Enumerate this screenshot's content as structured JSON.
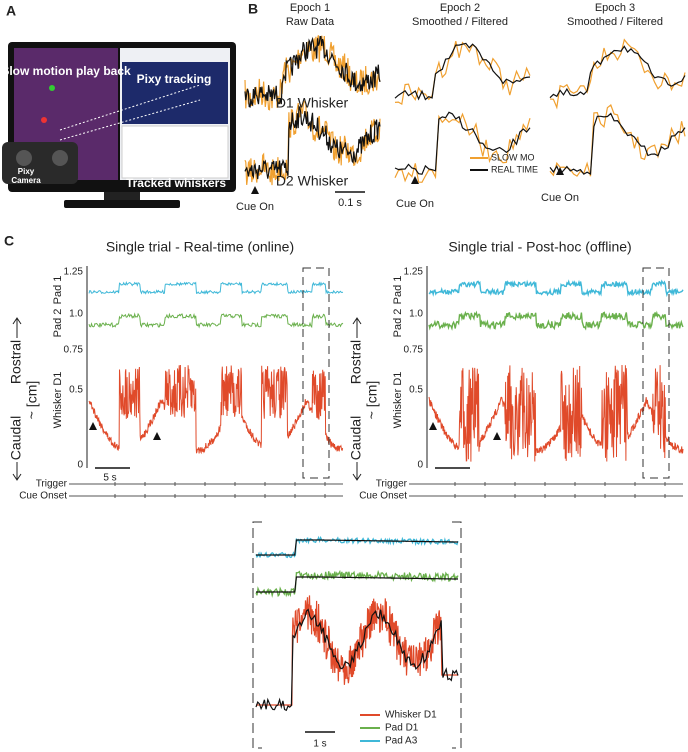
{
  "panels": {
    "A": {
      "label": "A",
      "screen_left": "Slow motion play back",
      "screen_right": "Pixy tracking",
      "camera": [
        "Pixy",
        "Camera"
      ],
      "footer": "Tracked whiskers"
    },
    "B": {
      "label": "B",
      "epochs": [
        {
          "title": "Epoch 1",
          "subtitle": "Raw Data"
        },
        {
          "title": "Epoch 2",
          "subtitle": "Smoothed / Filtered"
        },
        {
          "title": "Epoch 3",
          "subtitle": "Smoothed / Filtered"
        }
      ],
      "row_labels": [
        "D1 Whisker",
        "D2 Whisker"
      ],
      "cue": "Cue On",
      "scale": "0.1 s",
      "legend": [
        "SLOW MO",
        "REAL TIME"
      ]
    },
    "C": {
      "label": "C",
      "titles": [
        "Single trial - Real-time (online)",
        "Single trial - Post-hoc (offline)"
      ],
      "direction": [
        "Caudal",
        "Rostral"
      ],
      "unit": "~ [cm]",
      "traces": [
        "Pad 1",
        "Pad 2",
        "Whisker D1"
      ],
      "ticks": [
        "1.25",
        "1.0",
        "0.75",
        "0.5",
        "0"
      ],
      "scale": "5 s",
      "events": [
        "Trigger",
        "Cue Onset"
      ],
      "inset_legend": [
        "Whisker D1",
        "Pad D1",
        "Pad A3"
      ],
      "inset_scale": "1 s"
    }
  }
}
